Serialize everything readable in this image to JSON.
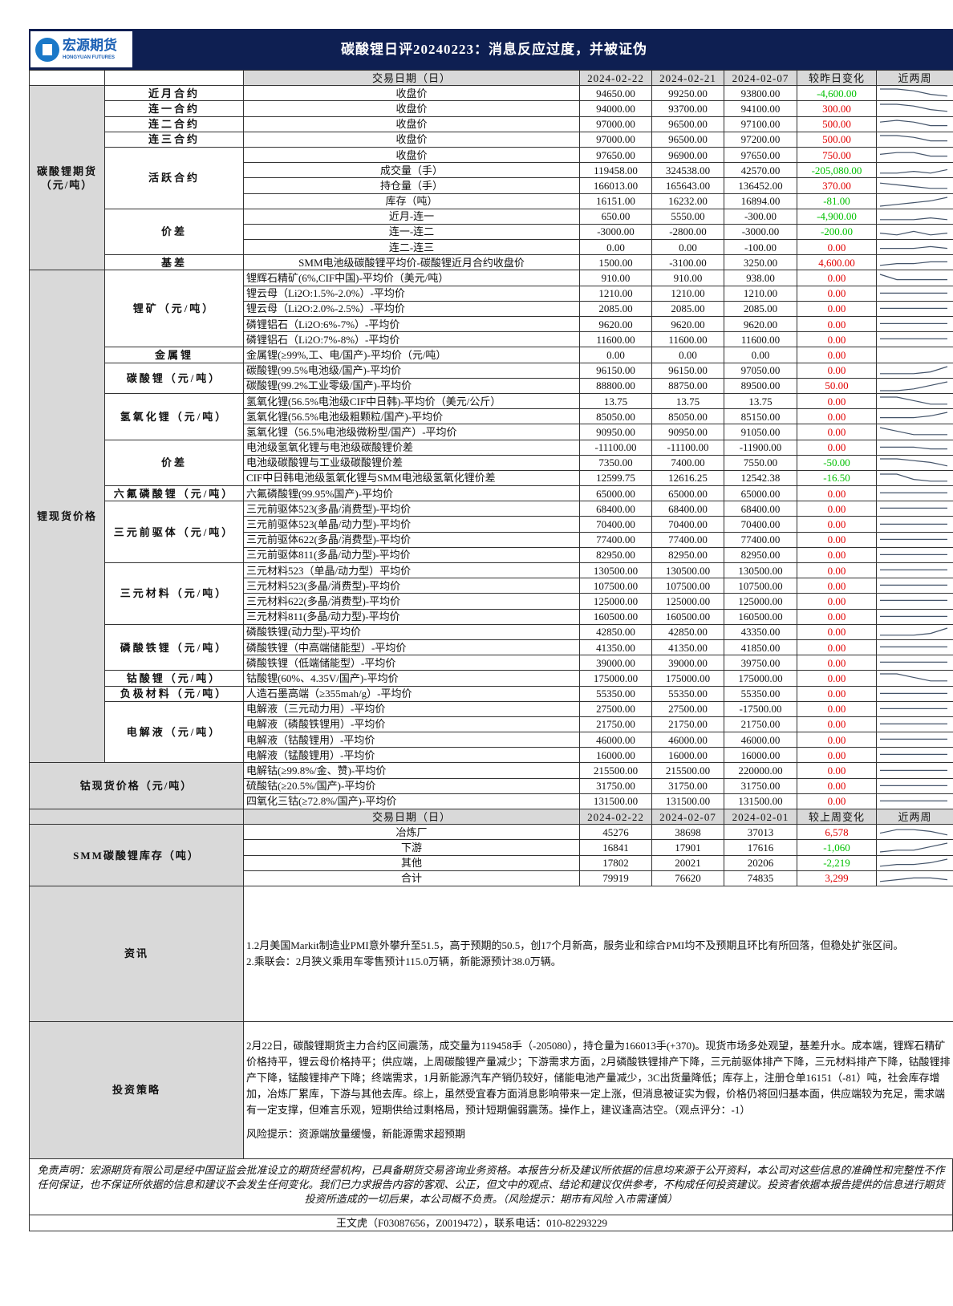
{
  "header": {
    "logo_cn": "宏源期货",
    "logo_en": "HONGYUAN FUTURES",
    "title": "碳酸锂日评20240223：消息反应过度，并被证伪"
  },
  "colors": {
    "banner": "#0e1f52",
    "up": "#e00000",
    "down": "#00c000",
    "label_bg": "#d9d9d9"
  },
  "daily_header": {
    "label": "交易日期（日）",
    "dates": [
      "2024-02-22",
      "2024-02-21",
      "2024-02-07"
    ],
    "change": "较昨日变化",
    "trend": "近两周"
  },
  "groups": [
    {
      "name": "碳酸锂期货（元/吨）",
      "center": true,
      "subs": [
        {
          "name": "近月合约",
          "rows": [
            [
              "收盘价",
              "94650.00",
              "99250.00",
              "93800.00",
              "-4,600.00",
              [
                5,
                5,
                4,
                2,
                1
              ]
            ]
          ]
        },
        {
          "name": "连一合约",
          "rows": [
            [
              "收盘价",
              "94000.00",
              "93700.00",
              "94100.00",
              "300.00",
              [
                5,
                5,
                4,
                2,
                1
              ]
            ]
          ]
        },
        {
          "name": "连二合约",
          "rows": [
            [
              "收盘价",
              "97000.00",
              "96500.00",
              "97100.00",
              "500.00",
              [
                4,
                5,
                4,
                2,
                2
              ]
            ]
          ]
        },
        {
          "name": "连三合约",
          "rows": [
            [
              "收盘价",
              "97000.00",
              "96500.00",
              "97200.00",
              "500.00",
              [
                5,
                5,
                4,
                2,
                2
              ]
            ]
          ]
        },
        {
          "name": "活跃合约",
          "rows": [
            [
              "收盘价",
              "97650.00",
              "96900.00",
              "97650.00",
              "750.00",
              [
                3,
                4,
                4,
                2,
                2
              ]
            ],
            [
              "成交量（手）",
              "119458.00",
              "324538.00",
              "42570.00",
              "-205,080.00",
              [
                1,
                1,
                2,
                1,
                3
              ]
            ],
            [
              "持仓量（手）",
              "166013.00",
              "165643.00",
              "136452.00",
              "370.00",
              [
                4,
                3,
                2,
                1,
                1
              ]
            ],
            [
              "库存（吨）",
              "16151.00",
              "16232.00",
              "16894.00",
              "-81.00",
              [
                0,
                1,
                2,
                3,
                5
              ]
            ]
          ]
        },
        {
          "name": "价差",
          "rows": [
            [
              "近月-连一",
              "650.00",
              "5550.00",
              "-300.00",
              "-4,900.00",
              [
                1,
                1,
                1,
                2,
                1
              ]
            ],
            [
              "连一-连二",
              "-3000.00",
              "-2800.00",
              "-3000.00",
              "-200.00",
              [
                2,
                1,
                3,
                1,
                2
              ]
            ],
            [
              "连二-连三",
              "0.00",
              "0.00",
              "-100.00",
              "0.00",
              [
                2,
                2,
                2,
                3,
                2
              ]
            ]
          ]
        },
        {
          "name": "基差",
          "rows": [
            [
              "SMM电池级碳酸锂平均价-碳酸锂近月合约收盘价",
              "1500.00",
              "-3100.00",
              "3250.00",
              "4,600.00",
              [
                1,
                2,
                2,
                3,
                3
              ]
            ]
          ]
        }
      ]
    },
    {
      "name": "锂现货价格",
      "center": false,
      "subs": [
        {
          "name": "锂矿（元/吨）",
          "rows": [
            [
              "锂辉石精矿(6%,CIF中国)-平均价（美元/吨）",
              "910.00",
              "910.00",
              "938.00",
              "0.00",
              [
                5,
                2,
                2,
                2,
                2
              ]
            ],
            [
              "锂云母（Li2O:1.5%-2.0%）-平均价",
              "1210.00",
              "1210.00",
              "1210.00",
              "0.00",
              [
                3,
                3,
                3,
                3,
                3
              ]
            ],
            [
              "锂云母（Li2O:2.0%-2.5%）-平均价",
              "2085.00",
              "2085.00",
              "2085.00",
              "0.00",
              [
                3,
                3,
                3,
                3,
                3
              ]
            ],
            [
              "磷锂铝石（Li2O:6%-7%）-平均价",
              "9620.00",
              "9620.00",
              "9620.00",
              "0.00",
              [
                3,
                3,
                3,
                3,
                3
              ]
            ],
            [
              "磷锂铝石（Li2O:7%-8%）-平均价",
              "11600.00",
              "11600.00",
              "11600.00",
              "0.00",
              [
                3,
                3,
                3,
                3,
                3
              ]
            ]
          ]
        },
        {
          "name": "金属锂",
          "rows": [
            [
              "金属锂(≥99%,工、电/国产)-平均价（元/吨）",
              "0.00",
              "0.00",
              "0.00",
              "0.00",
              []
            ]
          ]
        },
        {
          "name": "碳酸锂（元/吨）",
          "rows": [
            [
              "碳酸锂(99.5%电池级/国产)-平均价",
              "96150.00",
              "96150.00",
              "97050.00",
              "0.00",
              [
                1,
                1,
                1,
                2,
                5
              ]
            ],
            [
              "碳酸锂(99.2%工业零级/国产)-平均价",
              "88800.00",
              "88750.00",
              "89500.00",
              "50.00",
              [
                0,
                0,
                1,
                3,
                5
              ]
            ]
          ]
        },
        {
          "name": "氢氧化锂（元/吨）",
          "rows": [
            [
              "氢氧化锂(56.5%电池级CIF中日韩)-平均价（美元/公斤）",
              "13.75",
              "13.75",
              "13.75",
              "0.00",
              [
                5,
                5,
                3,
                1,
                1
              ]
            ],
            [
              "氢氧化锂(56.5%电池级粗颗粒/国产)-平均价",
              "85050.00",
              "85050.00",
              "85150.00",
              "0.00",
              [
                2,
                2,
                2,
                3,
                5
              ]
            ],
            [
              "氢氧化锂（56.5%电池级微粉型/国产）-平均价",
              "90950.00",
              "90950.00",
              "91050.00",
              "0.00",
              [
                5,
                3,
                1,
                1,
                1
              ]
            ]
          ]
        },
        {
          "name": "价差",
          "rows": [
            [
              "电池级氢氧化锂与电池级碳酸锂价差",
              "-11100.00",
              "-11100.00",
              "-11900.00",
              "0.00",
              [
                3,
                3,
                3,
                2,
                2
              ]
            ],
            [
              "电池级碳酸锂与工业级碳酸锂价差",
              "7350.00",
              "7400.00",
              "7550.00",
              "-50.00",
              [
                5,
                5,
                4,
                3,
                1
              ]
            ],
            [
              "CIF中日韩电池级氢氧化锂与SMM电池级氢氧化锂价差",
              "12599.75",
              "12616.25",
              "12542.38",
              "-16.50",
              [
                5,
                5,
                2,
                1,
                1
              ]
            ]
          ]
        },
        {
          "name": "六氟磷酸锂（元/吨）",
          "rows": [
            [
              "六氟磷酸锂(99.95%国产)-平均价",
              "65000.00",
              "65000.00",
              "65000.00",
              "0.00",
              [
                3,
                3,
                3,
                3,
                3
              ]
            ]
          ]
        },
        {
          "name": "三元前驱体（元/吨）",
          "rows": [
            [
              "三元前驱体523(多晶/消费型)-平均价",
              "68400.00",
              "68400.00",
              "68400.00",
              "0.00",
              [
                3,
                3,
                3,
                3,
                3
              ]
            ],
            [
              "三元前驱体523(单晶/动力型)-平均价",
              "70400.00",
              "70400.00",
              "70400.00",
              "0.00",
              [
                3,
                3,
                3,
                3,
                3
              ]
            ],
            [
              "三元前驱体622(多晶/消费型)-平均价",
              "77400.00",
              "77400.00",
              "77400.00",
              "0.00",
              [
                3,
                3,
                3,
                3,
                3
              ]
            ],
            [
              "三元前驱体811(多晶/动力型)-平均价",
              "82950.00",
              "82950.00",
              "82950.00",
              "0.00",
              [
                3,
                3,
                3,
                3,
                3
              ]
            ]
          ]
        },
        {
          "name": "三元材料（元/吨）",
          "rows": [
            [
              "三元材料523（单晶/动力型）平均价",
              "130500.00",
              "130500.00",
              "130500.00",
              "0.00",
              [
                3,
                3,
                3,
                3,
                3
              ]
            ],
            [
              "三元材料523(多晶/消费型)-平均价",
              "107500.00",
              "107500.00",
              "107500.00",
              "0.00",
              [
                3,
                3,
                3,
                3,
                3
              ]
            ],
            [
              "三元材料622(多晶/消费型)-平均价",
              "125000.00",
              "125000.00",
              "125000.00",
              "0.00",
              [
                3,
                3,
                3,
                3,
                3
              ]
            ],
            [
              "三元材料811(多晶/动力型)-平均价",
              "160500.00",
              "160500.00",
              "160500.00",
              "0.00",
              [
                3,
                3,
                3,
                3,
                3
              ]
            ]
          ]
        },
        {
          "name": "磷酸铁锂（元/吨）",
          "rows": [
            [
              "磷酸铁锂(动力型)-平均价",
              "42850.00",
              "42850.00",
              "43350.00",
              "0.00",
              [
                1,
                1,
                1,
                2,
                5
              ]
            ],
            [
              "磷酸铁锂（中高端储能型）-平均价",
              "41350.00",
              "41350.00",
              "41850.00",
              "0.00",
              [
                3,
                3,
                3,
                3,
                3
              ]
            ],
            [
              "磷酸铁锂（低端储能型）-平均价",
              "39000.00",
              "39000.00",
              "39750.00",
              "0.00",
              [
                3,
                3,
                3,
                3,
                3
              ]
            ]
          ]
        },
        {
          "name": "钴酸锂（元/吨）",
          "rows": [
            [
              "钴酸锂(60%、4.35V/国产)-平均价",
              "175000.00",
              "175000.00",
              "175000.00",
              "0.00",
              [
                5,
                5,
                3,
                1,
                1
              ]
            ]
          ]
        },
        {
          "name": "负极材料（元/吨）",
          "rows": [
            [
              "人造石墨高端（≥355mah/g）-平均价",
              "55350.00",
              "55350.00",
              "55350.00",
              "0.00",
              [
                3,
                3,
                3,
                3,
                3
              ]
            ]
          ]
        },
        {
          "name": "电解液（元/吨）",
          "rows": [
            [
              "电解液（三元动力用）-平均价",
              "27500.00",
              "27500.00",
              "-17500.00",
              "0.00",
              [
                3,
                3,
                3,
                3,
                3
              ]
            ],
            [
              "电解液（磷酸铁锂用）-平均价",
              "21750.00",
              "21750.00",
              "21750.00",
              "0.00",
              [
                3,
                3,
                3,
                3,
                3
              ]
            ],
            [
              "电解液（钴酸锂用）-平均价",
              "46000.00",
              "46000.00",
              "46000.00",
              "0.00",
              [
                3,
                3,
                3,
                3,
                3
              ]
            ],
            [
              "电解液（锰酸锂用）-平均价",
              "16000.00",
              "16000.00",
              "16000.00",
              "0.00",
              [
                3,
                3,
                3,
                3,
                3
              ]
            ]
          ]
        }
      ]
    },
    {
      "name": "钴现货价格（元/吨）",
      "merged": true,
      "rows": [
        [
          "电解钴(≥99.8%/金、赞)-平均价",
          "215500.00",
          "215500.00",
          "220000.00",
          "0.00",
          [
            3,
            3,
            3,
            3,
            3
          ]
        ],
        [
          "硫酸钴(≥20.5%/国产)-平均价",
          "31750.00",
          "31750.00",
          "31750.00",
          "0.00",
          [
            3,
            3,
            3,
            3,
            3
          ]
        ],
        [
          "四氧化三钴(≥72.8%/国产)-平均价",
          "131500.00",
          "131500.00",
          "131500.00",
          "0.00",
          [
            3,
            3,
            3,
            3,
            3
          ]
        ]
      ]
    }
  ],
  "inventory": {
    "name": "SMM碳酸锂库存（吨）",
    "label": "交易日期（日）",
    "dates": [
      "2024-02-22",
      "2024-02-07",
      "2024-02-01"
    ],
    "change": "较上周变化",
    "trend": "近两周",
    "rows": [
      [
        "冶炼厂",
        "45276",
        "38698",
        "37013",
        "6,578",
        [
          2,
          4,
          4,
          3,
          1
        ]
      ],
      [
        "下游",
        "16841",
        "17901",
        "17616",
        "-1,060",
        [
          0,
          1,
          1,
          3,
          5
        ]
      ],
      [
        "其他",
        "17802",
        "20021",
        "20206",
        "-2,219",
        [
          1,
          2,
          2,
          3,
          5
        ]
      ],
      [
        "合计",
        "79919",
        "76620",
        "74835",
        "3,299",
        [
          1,
          2,
          3,
          3,
          2
        ]
      ]
    ]
  },
  "news": {
    "label": "资讯",
    "items": [
      "1.2月美国Markit制造业PMI意外攀升至51.5，高于预期的50.5，创17个月新高，服务业和综合PMI均不及预期且环比有所回落，但稳处扩张区间。",
      "2.乘联会：2月狭义乘用车零售预计115.0万辆，新能源预计38.0万辆。"
    ]
  },
  "strategy": {
    "label": "投资策略",
    "text": "2月22日，碳酸锂期货主力合约区间震荡，成交量为119458手（-205080），持仓量为166013手(+370)。现货市场多处观望，基差升水。成本端，锂辉石精矿价格持平，锂云母价格持平；供应端，上周碳酸锂产量减少；下游需求方面，2月磷酸铁锂排产下降，三元前驱体排产下降，三元材料排产下降，钴酸锂排产下降，锰酸锂排产下降；终端需求，1月新能源汽车产销仍较好，储能电池产量减少，3C出货量降低；库存上，注册仓单16151（-81）吨，社会库存增加，冶炼厂累库，下游与其他去库。综上，虽然受宜春方面消息影响带来一定上涨，但消息被证实为假，价格仍将回归基本面，供应端较为充足，需求端有一定支撑，但难言乐观，短期供给过剩格局，预计短期偏弱震荡。操作上，建议逢高沽空。（观点评分：-1）",
    "risk": "风险提示：资源端放量缓慢，新能源需求超预期"
  },
  "footer": {
    "disclaimer": "免责声明：宏源期货有限公司是经中国证监会批准设立的期货经营机构，已具备期货交易咨询业务资格。本报告分析及建议所依据的信息均来源于公开资料，本公司对这些信息的准确性和完整性不作任何保证，也不保证所依据的信息和建议不会发生任何变化。我们已力求报告内容的客观、公正，但文中的观点、结论和建议仅供参考，不构成任何投资建议。投资者依据本报告提供的信息进行期货投资所造成的一切后果，本公司概不负责。（风险提示：期市有风险 入市需谨慎）",
    "contact": "王文虎（F03087656，Z0019472），联系电话：010-82293229"
  }
}
